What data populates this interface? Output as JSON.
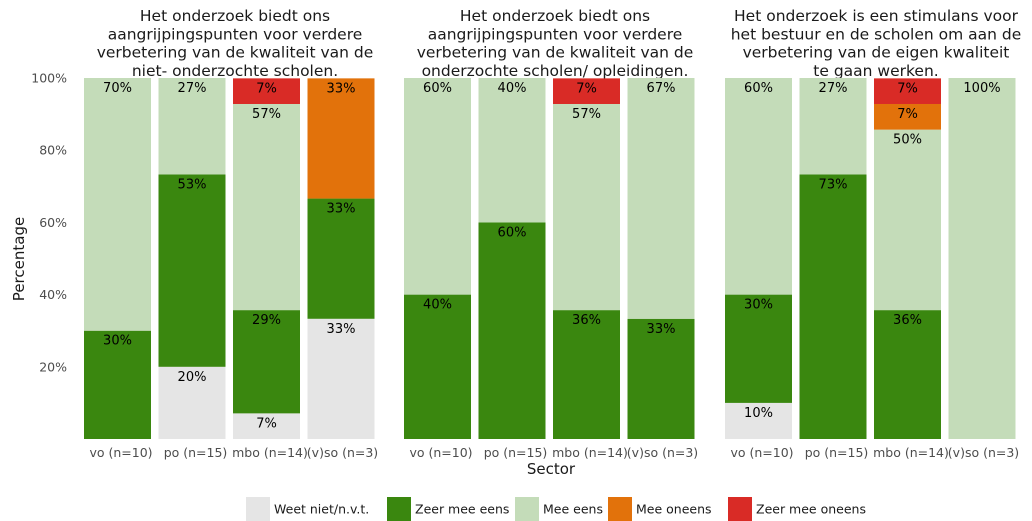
{
  "chart_data": {
    "type": "bar",
    "stacked": true,
    "xlabel": "Sector",
    "ylabel": "Percentage",
    "ylim": [
      0,
      100
    ],
    "yticks": [
      "20%",
      "40%",
      "60%",
      "80%",
      "100%"
    ],
    "categories": [
      "vo (n=10)",
      "po (n=15)",
      "mbo (n=14)",
      "(v)so (n=3)"
    ],
    "series_order": [
      "Weet niet/n.v.t.",
      "Zeer mee eens",
      "Mee eens",
      "Mee oneens",
      "Zeer mee oneens"
    ],
    "colors": {
      "Weet niet/n.v.t.": "#e5e5e5",
      "Zeer mee eens": "#3a870f",
      "Mee eens": "#c4dcb9",
      "Mee oneens": "#e2720b",
      "Zeer mee oneens": "#d92b26"
    },
    "panels": [
      {
        "title": [
          "Het onderzoek biedt ons",
          "aangrijpingspunten voor verdere",
          "verbetering van de kwaliteit van de",
          "niet- onderzochte scholen."
        ],
        "bars": [
          {
            "category": "vo (n=10)",
            "segments": [
              {
                "series": "Zeer mee eens",
                "value": 30,
                "label": "30%"
              },
              {
                "series": "Mee eens",
                "value": 70,
                "label": "70%"
              }
            ]
          },
          {
            "category": "po (n=15)",
            "segments": [
              {
                "series": "Weet niet/n.v.t.",
                "value": 20,
                "label": "20%"
              },
              {
                "series": "Zeer mee eens",
                "value": 53.3,
                "label": "53%"
              },
              {
                "series": "Mee eens",
                "value": 26.7,
                "label": "27%"
              }
            ]
          },
          {
            "category": "mbo (n=14)",
            "segments": [
              {
                "series": "Weet niet/n.v.t.",
                "value": 7.1,
                "label": "7%"
              },
              {
                "series": "Zeer mee eens",
                "value": 28.6,
                "label": "29%"
              },
              {
                "series": "Mee eens",
                "value": 57.1,
                "label": "57%"
              },
              {
                "series": "Zeer mee oneens",
                "value": 7.1,
                "label": "7%"
              }
            ]
          },
          {
            "category": "(v)so (n=3)",
            "segments": [
              {
                "series": "Weet niet/n.v.t.",
                "value": 33.3,
                "label": "33%"
              },
              {
                "series": "Zeer mee eens",
                "value": 33.3,
                "label": "33%"
              },
              {
                "series": "Mee oneens",
                "value": 33.3,
                "label": "33%"
              }
            ]
          }
        ]
      },
      {
        "title": [
          "Het onderzoek biedt ons",
          "aangrijpingspunten voor verdere",
          "verbetering van de kwaliteit van de",
          "onderzochte scholen/ opleidingen."
        ],
        "bars": [
          {
            "category": "vo (n=10)",
            "segments": [
              {
                "series": "Zeer mee eens",
                "value": 40,
                "label": "40%"
              },
              {
                "series": "Mee eens",
                "value": 60,
                "label": "60%"
              }
            ]
          },
          {
            "category": "po (n=15)",
            "segments": [
              {
                "series": "Zeer mee eens",
                "value": 60,
                "label": "60%"
              },
              {
                "series": "Mee eens",
                "value": 40,
                "label": "40%"
              }
            ]
          },
          {
            "category": "mbo (n=14)",
            "segments": [
              {
                "series": "Zeer mee eens",
                "value": 35.7,
                "label": "36%"
              },
              {
                "series": "Mee eens",
                "value": 57.1,
                "label": "57%"
              },
              {
                "series": "Zeer mee oneens",
                "value": 7.1,
                "label": "7%"
              }
            ]
          },
          {
            "category": "(v)so (n=3)",
            "segments": [
              {
                "series": "Zeer mee eens",
                "value": 33.3,
                "label": "33%"
              },
              {
                "series": "Mee eens",
                "value": 66.7,
                "label": "67%"
              }
            ]
          }
        ]
      },
      {
        "title": [
          "Het onderzoek is een stimulans voor",
          "het bestuur en de scholen om aan de",
          "verbetering van de eigen kwaliteit",
          "te gaan werken."
        ],
        "bars": [
          {
            "category": "vo (n=10)",
            "segments": [
              {
                "series": "Weet niet/n.v.t.",
                "value": 10,
                "label": "10%"
              },
              {
                "series": "Zeer mee eens",
                "value": 30,
                "label": "30%"
              },
              {
                "series": "Mee eens",
                "value": 60,
                "label": "60%"
              }
            ]
          },
          {
            "category": "po (n=15)",
            "segments": [
              {
                "series": "Zeer mee eens",
                "value": 73.3,
                "label": "73%"
              },
              {
                "series": "Mee eens",
                "value": 26.7,
                "label": "27%"
              }
            ]
          },
          {
            "category": "mbo (n=14)",
            "segments": [
              {
                "series": "Zeer mee eens",
                "value": 35.7,
                "label": "36%"
              },
              {
                "series": "Mee eens",
                "value": 50,
                "label": "50%"
              },
              {
                "series": "Mee oneens",
                "value": 7.1,
                "label": "7%"
              },
              {
                "series": "Zeer mee oneens",
                "value": 7.1,
                "label": "7%"
              }
            ]
          },
          {
            "category": "(v)so (n=3)",
            "segments": [
              {
                "series": "Mee eens",
                "value": 100,
                "label": "100%"
              }
            ]
          }
        ]
      }
    ],
    "legend": {
      "position": "bottom",
      "items": [
        "Weet niet/n.v.t.",
        "Zeer mee eens",
        "Mee eens",
        "Mee oneens",
        "Zeer mee oneens"
      ]
    }
  }
}
